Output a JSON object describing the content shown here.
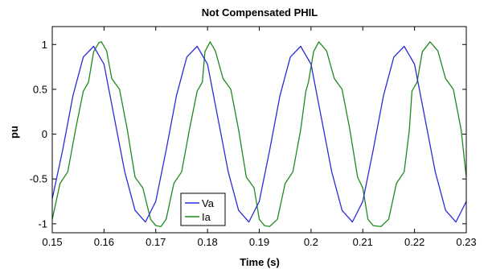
{
  "chart_data": {
    "type": "line",
    "title": "Not Compensated PHIL",
    "xlabel": "Time (s)",
    "ylabel": "pu",
    "xlim": [
      0.15,
      0.23
    ],
    "ylim": [
      -1.1,
      1.2
    ],
    "xticks": [
      0.15,
      0.16,
      0.17,
      0.18,
      0.19,
      0.2,
      0.21,
      0.22,
      0.23
    ],
    "xtick_labels": [
      "0.15",
      "0.16",
      "0.17",
      "0.18",
      "0.19",
      "0.2",
      "0.21",
      "0.22",
      "0.23"
    ],
    "yticks": [
      -1,
      -0.5,
      0,
      0.5,
      1
    ],
    "ytick_labels": [
      "-1",
      "-0.5",
      "0",
      "0.5",
      "1"
    ],
    "grid": false,
    "legend_position": "bottom-left",
    "period_s": 0.02,
    "series": [
      {
        "name": "Va",
        "color": "#2b2bd9",
        "x": [
          0.15,
          0.152,
          0.154,
          0.156,
          0.158,
          0.16,
          0.162,
          0.164,
          0.166,
          0.168,
          0.17,
          0.172,
          0.174,
          0.176,
          0.178,
          0.18,
          0.182,
          0.184,
          0.186,
          0.188,
          0.19,
          0.192,
          0.194,
          0.196,
          0.198,
          0.2,
          0.202,
          0.204,
          0.206,
          0.208,
          0.21,
          0.212,
          0.214,
          0.216,
          0.218,
          0.22,
          0.222,
          0.224,
          0.226,
          0.228,
          0.23
        ],
        "y": [
          -0.72,
          -0.18,
          0.43,
          0.86,
          0.98,
          0.78,
          0.18,
          -0.42,
          -0.85,
          -0.98,
          -0.75,
          -0.18,
          0.43,
          0.86,
          0.98,
          0.78,
          0.18,
          -0.42,
          -0.85,
          -0.98,
          -0.75,
          -0.18,
          0.43,
          0.86,
          0.98,
          0.78,
          0.18,
          -0.42,
          -0.85,
          -0.98,
          -0.75,
          -0.18,
          0.43,
          0.86,
          0.98,
          0.78,
          0.18,
          -0.42,
          -0.85,
          -0.98,
          -0.75
        ]
      },
      {
        "name": "Ia",
        "color": "#1f8a1f",
        "x": [
          0.15,
          0.1515,
          0.153,
          0.1545,
          0.156,
          0.157,
          0.158,
          0.159,
          0.1595,
          0.1605,
          0.1615,
          0.163,
          0.1645,
          0.166,
          0.1675,
          0.169,
          0.17,
          0.171,
          0.172,
          0.1735,
          0.175,
          0.1765,
          0.178,
          0.179,
          0.1795,
          0.1805,
          0.1815,
          0.183,
          0.1845,
          0.186,
          0.1875,
          0.189,
          0.19,
          0.191,
          0.192,
          0.1935,
          0.195,
          0.1965,
          0.198,
          0.199,
          0.1995,
          0.2005,
          0.2015,
          0.203,
          0.2045,
          0.206,
          0.2075,
          0.209,
          0.21,
          0.211,
          0.212,
          0.2135,
          0.215,
          0.2165,
          0.218,
          0.219,
          0.2195,
          0.2205,
          0.2215,
          0.223,
          0.2245,
          0.226,
          0.2275,
          0.229,
          0.23
        ],
        "y": [
          -0.95,
          -0.55,
          -0.42,
          0.05,
          0.48,
          0.58,
          0.92,
          1.02,
          1.03,
          0.93,
          0.62,
          0.5,
          0.05,
          -0.48,
          -0.6,
          -0.95,
          -1.02,
          -1.03,
          -0.95,
          -0.55,
          -0.42,
          0.05,
          0.48,
          0.58,
          0.92,
          1.03,
          0.93,
          0.62,
          0.5,
          0.05,
          -0.48,
          -0.6,
          -0.95,
          -1.02,
          -1.03,
          -0.95,
          -0.55,
          -0.42,
          0.05,
          0.48,
          0.58,
          0.92,
          1.03,
          0.93,
          0.62,
          0.5,
          0.05,
          -0.48,
          -0.6,
          -0.95,
          -1.02,
          -1.03,
          -0.95,
          -0.55,
          -0.42,
          0.05,
          0.48,
          0.58,
          0.92,
          1.03,
          0.93,
          0.62,
          0.5,
          0.05,
          -0.48
        ]
      }
    ]
  }
}
